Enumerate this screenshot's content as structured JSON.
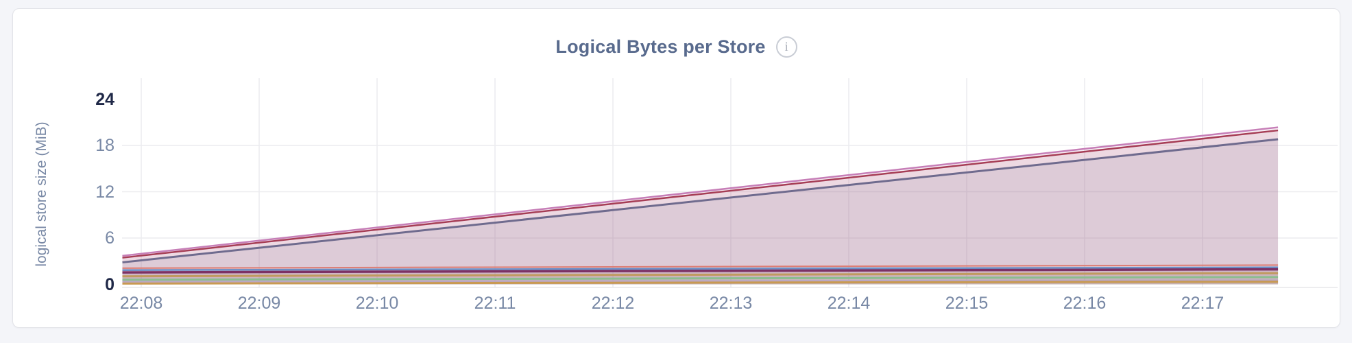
{
  "header": {
    "title": "Logical Bytes per Store",
    "info_glyph": "i"
  },
  "colors": {
    "page_bg": "#f4f5f9",
    "card_bg": "#ffffff",
    "card_border": "#e2e3e8",
    "title": "#586a8d",
    "tick": "#7888a5",
    "tick_emphasis": "#1f2847",
    "gridline": "#ececef",
    "axis_line": "#e7e7ea"
  },
  "chart_data": {
    "type": "area",
    "title": "Logical Bytes per Store",
    "xlabel": "",
    "ylabel": "logical store size (MiB)",
    "ylim": [
      0,
      24
    ],
    "yticks": [
      0,
      6,
      12,
      18,
      24
    ],
    "ytick_bold": [
      0,
      24
    ],
    "xticks": [
      "22:08",
      "22:09",
      "22:10",
      "22:11",
      "22:12",
      "22:13",
      "22:14",
      "22:15",
      "22:16",
      "22:17"
    ],
    "x_domain_minutes": [
      -0.16,
      9.64
    ],
    "grid": true,
    "legend": false,
    "note": "x values of points are minutes after 22:08; y values are MiB",
    "series": [
      {
        "color": "#c67eb7",
        "stroke_width": 2.5,
        "fill_opacity": 0.12,
        "points": [
          [
            -0.16,
            3.7
          ],
          [
            9.64,
            20.35
          ]
        ]
      },
      {
        "color": "#a63d55",
        "stroke_width": 2.5,
        "fill_opacity": 0.12,
        "points": [
          [
            -0.16,
            3.45
          ],
          [
            9.64,
            19.95
          ]
        ]
      },
      {
        "color": "#6f6b8e",
        "stroke_width": 3,
        "fill_opacity": 0.12,
        "points": [
          [
            -0.16,
            2.85
          ],
          [
            9.64,
            18.8
          ]
        ]
      },
      {
        "color": "#dd7e75",
        "stroke_width": 2,
        "fill_opacity": 0.07,
        "points": [
          [
            -0.16,
            2.1
          ],
          [
            9.64,
            2.5
          ]
        ]
      },
      {
        "color": "#6a8ec6",
        "stroke_width": 2.5,
        "fill_opacity": 0.07,
        "points": [
          [
            -0.16,
            1.85
          ],
          [
            9.64,
            2.2
          ]
        ]
      },
      {
        "color": "#7c3164",
        "stroke_width": 3.5,
        "fill_opacity": 0.07,
        "points": [
          [
            -0.16,
            1.55
          ],
          [
            9.64,
            1.95
          ]
        ]
      },
      {
        "color": "#c09a5e",
        "stroke_width": 3,
        "fill_opacity": 0.07,
        "points": [
          [
            -0.16,
            1.05
          ],
          [
            9.64,
            1.45
          ]
        ]
      },
      {
        "color": "#8cbd90",
        "stroke_width": 3,
        "fill_opacity": 0.07,
        "points": [
          [
            -0.16,
            0.6
          ],
          [
            9.64,
            0.95
          ]
        ]
      },
      {
        "color": "#b9a6c4",
        "stroke_width": 2,
        "fill_opacity": 0.07,
        "points": [
          [
            -0.16,
            0.35
          ],
          [
            9.64,
            0.55
          ]
        ]
      },
      {
        "color": "#c89a52",
        "stroke_width": 3,
        "fill_opacity": 0.07,
        "points": [
          [
            -0.16,
            0.1
          ],
          [
            9.64,
            0.35
          ]
        ]
      }
    ]
  }
}
